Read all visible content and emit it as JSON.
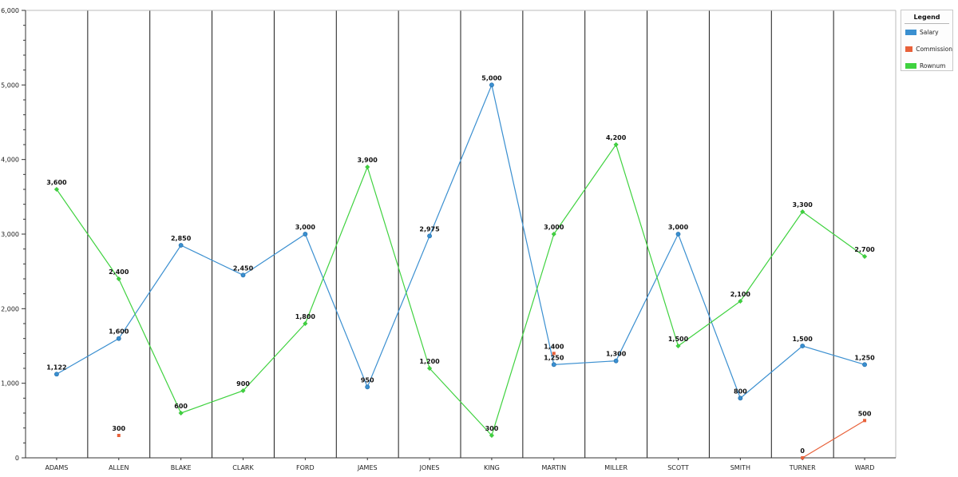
{
  "chart_data": {
    "type": "line",
    "categories": [
      "ADAMS",
      "ALLEN",
      "BLAKE",
      "CLARK",
      "FORD",
      "JAMES",
      "JONES",
      "KING",
      "MARTIN",
      "MILLER",
      "SCOTT",
      "SMITH",
      "TURNER",
      "WARD"
    ],
    "series": [
      {
        "name": "Salary",
        "color": "#3a8fd0",
        "values": [
          1122,
          1600,
          2850,
          2450,
          3000,
          950,
          2975,
          5000,
          1250,
          1300,
          3000,
          800,
          1500,
          1250
        ],
        "labels": [
          "1,122",
          "1,600",
          "2,850",
          "2,450",
          "3,000",
          "950",
          "2,975",
          "5,000",
          "1,250",
          "1,300",
          "3,000",
          "800",
          "1,500",
          "1,250"
        ]
      },
      {
        "name": "Commission",
        "color": "#e8613a",
        "values": [
          null,
          300,
          null,
          null,
          null,
          null,
          null,
          null,
          1400,
          null,
          null,
          null,
          0,
          500
        ],
        "labels": [
          null,
          "300",
          null,
          null,
          null,
          null,
          null,
          null,
          "1,400",
          null,
          null,
          null,
          "0",
          "500"
        ]
      },
      {
        "name": "Rownum",
        "color": "#3fd23f",
        "values": [
          3600,
          2400,
          600,
          900,
          1800,
          3900,
          1200,
          300,
          3000,
          4200,
          1500,
          2100,
          3300,
          2700
        ],
        "labels": [
          "3,600",
          "2,400",
          "600",
          "900",
          "1,800",
          "3,900",
          "1,200",
          "300",
          "3,000",
          "4,200",
          "1,500",
          "2,100",
          "3,300",
          "2,700"
        ]
      }
    ],
    "ylim": [
      0,
      6000
    ],
    "yticks": [
      0,
      1000,
      2000,
      3000,
      4000,
      5000,
      6000
    ],
    "ytick_labels": [
      "0",
      "1,000",
      "2,000",
      "3,000",
      "4,000",
      "5,000",
      "6,000"
    ],
    "grid": "vertical category separators",
    "title": "",
    "xlabel": "",
    "ylabel": "",
    "legend": {
      "title": "Legend",
      "position": "top-right"
    }
  }
}
